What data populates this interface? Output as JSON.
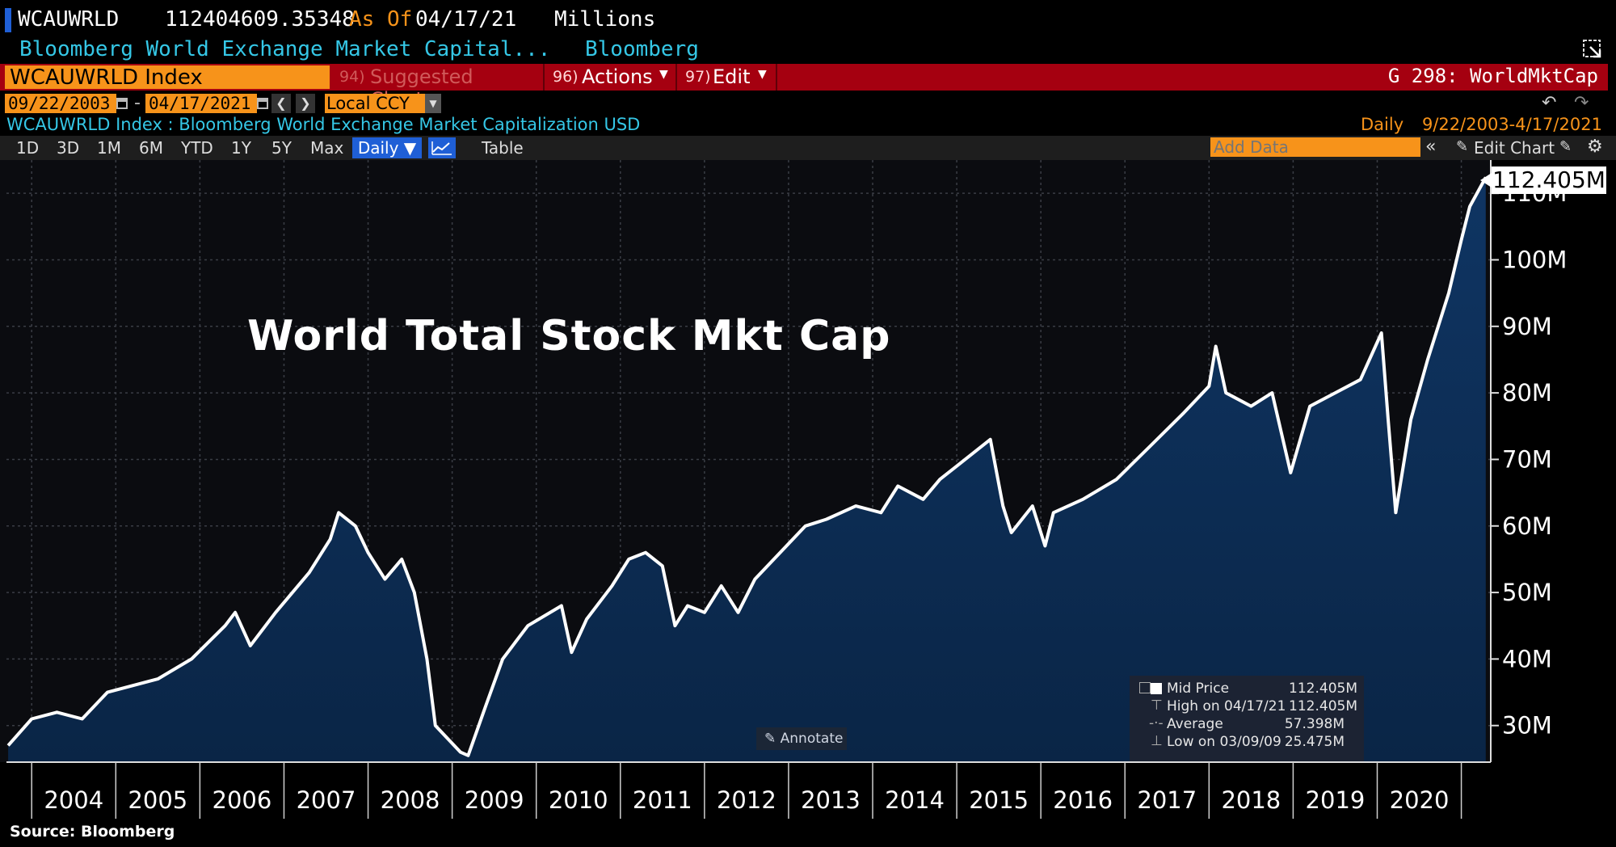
{
  "header": {
    "ticker": "WCAUWRLD",
    "last_value": "112404609.35348",
    "as_of_label": "As Of",
    "as_of_date": "04/17/21",
    "units": "Millions",
    "description": "Bloomberg World Exchange Market Capital...",
    "source_name": "Bloomberg"
  },
  "menubar": {
    "security": "WCAUWRLD Index",
    "suggested_num": "94)",
    "suggested": "Suggested Charts",
    "actions_num": "96)",
    "actions": "Actions",
    "edit_num": "97)",
    "edit": "Edit",
    "graph_id": "G 298: WorldMktCap"
  },
  "range": {
    "start": "09/22/2003",
    "dash": "-",
    "end": "04/17/2021",
    "currency": "Local CCY"
  },
  "info": {
    "title": "WCAUWRLD Index : Bloomberg World Exchange Market Capitalization USD",
    "freq": "Daily",
    "span": "9/22/2003-4/17/2021"
  },
  "toolbar": {
    "periods": [
      "1D",
      "3D",
      "1M",
      "6M",
      "YTD",
      "1Y",
      "5Y",
      "Max"
    ],
    "freq_select": "Daily ▼",
    "table": "Table",
    "add_data_placeholder": "Add Data",
    "edit_chart": "Edit Chart"
  },
  "annotate": "Annotate",
  "source_note": "Source: Bloomberg",
  "colors": {
    "area_top": "#0f3563",
    "area_bottom": "#0a2546",
    "line": "#ffffff",
    "orange": "#f7931a",
    "red_bar": "#a50010",
    "cyan": "#35c7e6"
  },
  "chart_data": {
    "type": "area",
    "title": "World Total Stock Mkt Cap",
    "ylabel": "",
    "xlabel": "",
    "ylim": [
      24.5,
      115
    ],
    "y_ticks": [
      "30M",
      "40M",
      "50M",
      "60M",
      "70M",
      "80M",
      "90M",
      "100M",
      "110M"
    ],
    "x_ticks": [
      "2004",
      "2005",
      "2006",
      "2007",
      "2008",
      "2009",
      "2010",
      "2011",
      "2012",
      "2013",
      "2014",
      "2015",
      "2016",
      "2017",
      "2018",
      "2019",
      "2020"
    ],
    "last_label": "112.405M",
    "series": [
      {
        "name": "Mid Price",
        "x": [
          2003.72,
          2004.0,
          2004.3,
          2004.6,
          2004.9,
          2005.2,
          2005.5,
          2005.9,
          2006.3,
          2006.42,
          2006.6,
          2006.9,
          2007.3,
          2007.55,
          2007.65,
          2007.85,
          2008.0,
          2008.2,
          2008.4,
          2008.55,
          2008.7,
          2008.8,
          2008.95,
          2009.1,
          2009.19,
          2009.4,
          2009.6,
          2009.9,
          2010.3,
          2010.42,
          2010.6,
          2010.9,
          2011.1,
          2011.3,
          2011.5,
          2011.65,
          2011.8,
          2012.0,
          2012.2,
          2012.4,
          2012.6,
          2012.9,
          2013.2,
          2013.45,
          2013.8,
          2014.1,
          2014.3,
          2014.6,
          2014.8,
          2015.0,
          2015.4,
          2015.55,
          2015.65,
          2015.9,
          2016.05,
          2016.15,
          2016.5,
          2016.9,
          2017.3,
          2017.7,
          2018.0,
          2018.08,
          2018.2,
          2018.5,
          2018.75,
          2018.97,
          2019.2,
          2019.5,
          2019.8,
          2020.05,
          2020.13,
          2020.22,
          2020.4,
          2020.6,
          2020.85,
          2021.0,
          2021.1,
          2021.29
        ],
        "values": [
          27,
          31,
          32,
          31,
          35,
          36,
          37,
          40,
          45,
          47,
          42,
          47,
          53,
          58,
          62,
          60,
          56,
          52,
          55,
          50,
          40,
          30,
          28,
          26,
          25.5,
          33,
          40,
          45,
          48,
          41,
          46,
          51,
          55,
          56,
          54,
          45,
          48,
          47,
          51,
          47,
          52,
          56,
          60,
          61,
          63,
          62,
          66,
          64,
          67,
          69,
          73,
          63,
          59,
          63,
          57,
          62,
          64,
          67,
          72,
          77,
          81,
          87,
          80,
          78,
          80,
          68,
          78,
          80,
          82,
          89,
          76,
          62,
          76,
          85,
          95,
          103,
          108,
          112.4
        ]
      }
    ],
    "legend": {
      "mid_price_label": "Mid Price",
      "mid_price": "112.405M",
      "high_label": "High on 04/17/21",
      "high": "112.405M",
      "average_label": "Average",
      "average": "57.398M",
      "low_label": "Low on 03/09/09",
      "low": "25.475M"
    },
    "legend_position": "bottom-right",
    "grid": true
  }
}
